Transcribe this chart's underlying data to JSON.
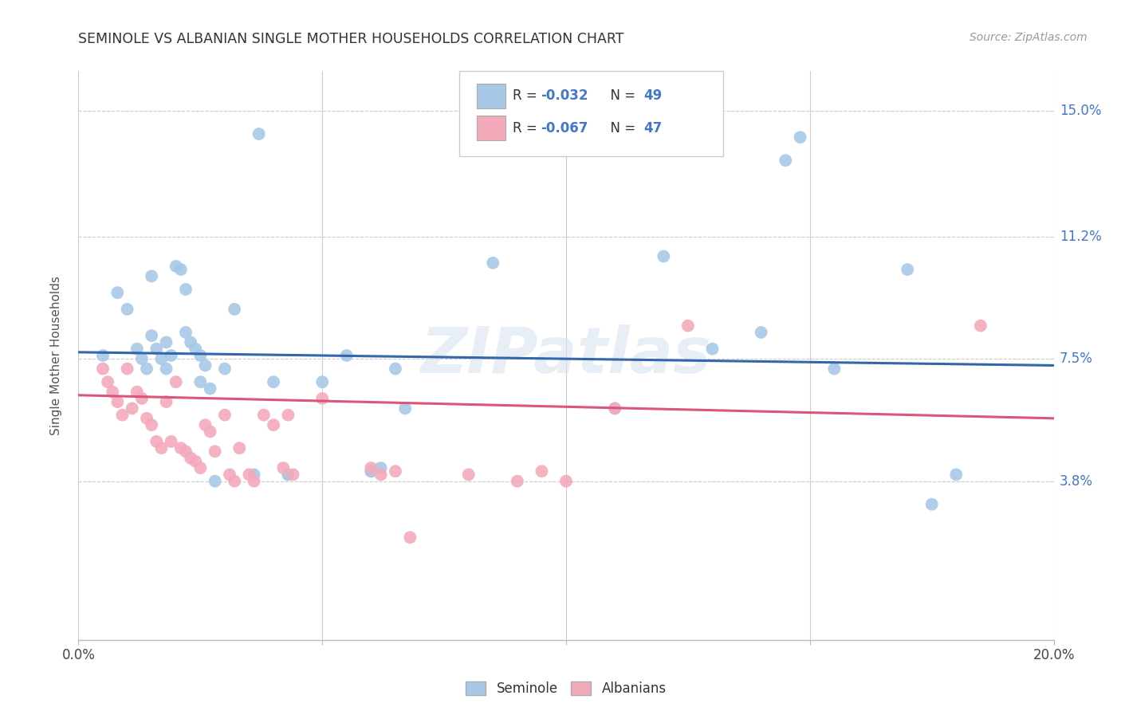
{
  "title": "SEMINOLE VS ALBANIAN SINGLE MOTHER HOUSEHOLDS CORRELATION CHART",
  "source": "Source: ZipAtlas.com",
  "ylabel": "Single Mother Households",
  "x_min": 0.0,
  "x_max": 0.2,
  "y_min": -0.01,
  "y_max": 0.162,
  "y_tick_labels_right": [
    "3.8%",
    "7.5%",
    "11.2%",
    "15.0%"
  ],
  "y_tick_vals_right": [
    0.038,
    0.075,
    0.112,
    0.15
  ],
  "seminole_R": -0.032,
  "seminole_N": 49,
  "albanian_R": -0.067,
  "albanian_N": 47,
  "seminole_color": "#a8c8e8",
  "albanian_color": "#f4aabb",
  "seminole_line_color": "#3366aa",
  "albanian_line_color": "#dd5577",
  "watermark": "ZIPatlas",
  "sem_line_y0": 0.077,
  "sem_line_y1": 0.073,
  "alb_line_y0": 0.064,
  "alb_line_y1": 0.057,
  "seminole_points": [
    [
      0.005,
      0.076
    ],
    [
      0.008,
      0.095
    ],
    [
      0.01,
      0.09
    ],
    [
      0.012,
      0.078
    ],
    [
      0.013,
      0.075
    ],
    [
      0.014,
      0.072
    ],
    [
      0.015,
      0.1
    ],
    [
      0.015,
      0.082
    ],
    [
      0.016,
      0.078
    ],
    [
      0.017,
      0.075
    ],
    [
      0.018,
      0.08
    ],
    [
      0.018,
      0.072
    ],
    [
      0.019,
      0.076
    ],
    [
      0.02,
      0.103
    ],
    [
      0.021,
      0.102
    ],
    [
      0.022,
      0.096
    ],
    [
      0.022,
      0.083
    ],
    [
      0.023,
      0.08
    ],
    [
      0.024,
      0.078
    ],
    [
      0.025,
      0.076
    ],
    [
      0.025,
      0.068
    ],
    [
      0.026,
      0.073
    ],
    [
      0.027,
      0.066
    ],
    [
      0.028,
      0.038
    ],
    [
      0.03,
      0.072
    ],
    [
      0.032,
      0.09
    ],
    [
      0.036,
      0.04
    ],
    [
      0.037,
      0.143
    ],
    [
      0.04,
      0.068
    ],
    [
      0.043,
      0.04
    ],
    [
      0.043,
      0.04
    ],
    [
      0.05,
      0.068
    ],
    [
      0.055,
      0.076
    ],
    [
      0.06,
      0.041
    ],
    [
      0.06,
      0.041
    ],
    [
      0.062,
      0.042
    ],
    [
      0.065,
      0.072
    ],
    [
      0.067,
      0.06
    ],
    [
      0.085,
      0.104
    ],
    [
      0.11,
      0.06
    ],
    [
      0.12,
      0.106
    ],
    [
      0.13,
      0.078
    ],
    [
      0.14,
      0.083
    ],
    [
      0.145,
      0.135
    ],
    [
      0.148,
      0.142
    ],
    [
      0.155,
      0.072
    ],
    [
      0.17,
      0.102
    ],
    [
      0.175,
      0.031
    ],
    [
      0.18,
      0.04
    ]
  ],
  "albanian_points": [
    [
      0.005,
      0.072
    ],
    [
      0.006,
      0.068
    ],
    [
      0.007,
      0.065
    ],
    [
      0.008,
      0.062
    ],
    [
      0.009,
      0.058
    ],
    [
      0.01,
      0.072
    ],
    [
      0.011,
      0.06
    ],
    [
      0.012,
      0.065
    ],
    [
      0.013,
      0.063
    ],
    [
      0.014,
      0.057
    ],
    [
      0.015,
      0.055
    ],
    [
      0.016,
      0.05
    ],
    [
      0.017,
      0.048
    ],
    [
      0.018,
      0.062
    ],
    [
      0.019,
      0.05
    ],
    [
      0.02,
      0.068
    ],
    [
      0.021,
      0.048
    ],
    [
      0.022,
      0.047
    ],
    [
      0.023,
      0.045
    ],
    [
      0.024,
      0.044
    ],
    [
      0.025,
      0.042
    ],
    [
      0.026,
      0.055
    ],
    [
      0.027,
      0.053
    ],
    [
      0.028,
      0.047
    ],
    [
      0.03,
      0.058
    ],
    [
      0.031,
      0.04
    ],
    [
      0.032,
      0.038
    ],
    [
      0.033,
      0.048
    ],
    [
      0.035,
      0.04
    ],
    [
      0.036,
      0.038
    ],
    [
      0.038,
      0.058
    ],
    [
      0.04,
      0.055
    ],
    [
      0.042,
      0.042
    ],
    [
      0.043,
      0.058
    ],
    [
      0.044,
      0.04
    ],
    [
      0.05,
      0.063
    ],
    [
      0.06,
      0.042
    ],
    [
      0.062,
      0.04
    ],
    [
      0.065,
      0.041
    ],
    [
      0.068,
      0.021
    ],
    [
      0.08,
      0.04
    ],
    [
      0.09,
      0.038
    ],
    [
      0.095,
      0.041
    ],
    [
      0.1,
      0.038
    ],
    [
      0.11,
      0.06
    ],
    [
      0.125,
      0.085
    ],
    [
      0.185,
      0.085
    ]
  ]
}
